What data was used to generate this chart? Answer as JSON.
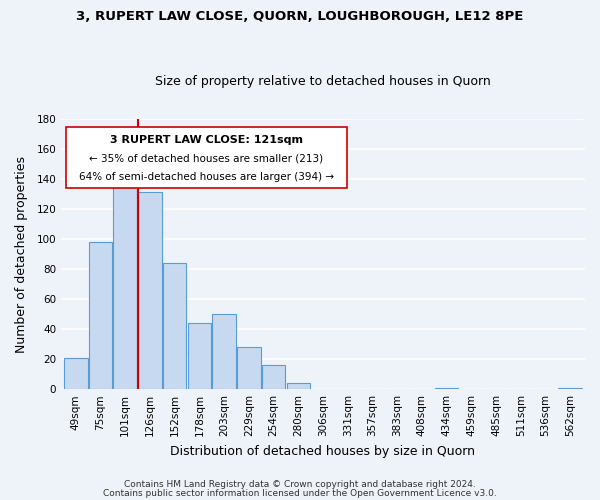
{
  "title": "3, RUPERT LAW CLOSE, QUORN, LOUGHBOROUGH, LE12 8PE",
  "subtitle": "Size of property relative to detached houses in Quorn",
  "xlabel": "Distribution of detached houses by size in Quorn",
  "ylabel": "Number of detached properties",
  "bar_labels": [
    "49sqm",
    "75sqm",
    "101sqm",
    "126sqm",
    "152sqm",
    "178sqm",
    "203sqm",
    "229sqm",
    "254sqm",
    "280sqm",
    "306sqm",
    "331sqm",
    "357sqm",
    "383sqm",
    "408sqm",
    "434sqm",
    "459sqm",
    "485sqm",
    "511sqm",
    "536sqm",
    "562sqm"
  ],
  "bar_values": [
    21,
    98,
    137,
    131,
    84,
    44,
    50,
    28,
    16,
    4,
    0,
    0,
    0,
    0,
    0,
    1,
    0,
    0,
    0,
    0,
    1
  ],
  "bar_color": "#c6d9f0",
  "bar_edge_color": "#5b9bd5",
  "ylim": [
    0,
    180
  ],
  "yticks": [
    0,
    20,
    40,
    60,
    80,
    100,
    120,
    140,
    160,
    180
  ],
  "property_line_color": "#cc0000",
  "property_line_bar_index": 3,
  "ann_line1": "3 RUPERT LAW CLOSE: 121sqm",
  "ann_line2": "← 35% of detached houses are smaller (213)",
  "ann_line3": "64% of semi-detached houses are larger (394) →",
  "footer_line1": "Contains HM Land Registry data © Crown copyright and database right 2024.",
  "footer_line2": "Contains public sector information licensed under the Open Government Licence v3.0.",
  "background_color": "#eef2f9",
  "plot_bg_color": "#eef2f9",
  "grid_color": "#ffffff",
  "title_fontsize": 9.5,
  "subtitle_fontsize": 9,
  "tick_fontsize": 7.5,
  "label_fontsize": 9,
  "footer_fontsize": 6.5
}
